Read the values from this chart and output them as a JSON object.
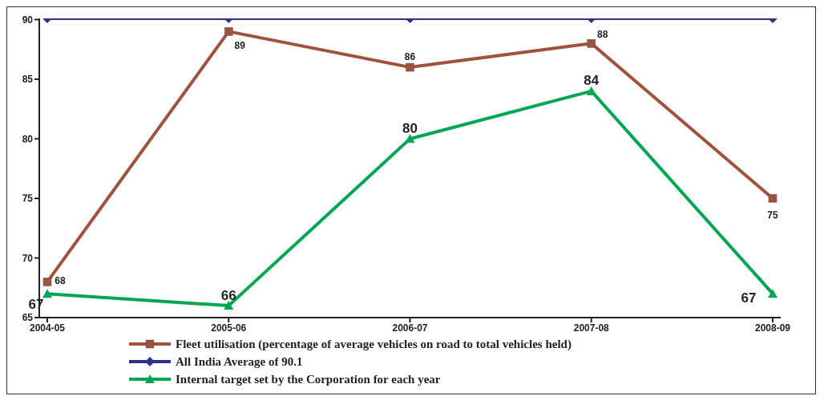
{
  "chart_data": {
    "type": "line",
    "categories": [
      "2004-05",
      "2005-06",
      "2006-07",
      "2007-08",
      "2008-09"
    ],
    "series": [
      {
        "name": "Fleet utilisation (percentage of average vehicles on road to total vehicles held)",
        "color": "#a0523d",
        "values": [
          68,
          89,
          86,
          88,
          75
        ],
        "marker": "square",
        "value_labels": [
          "68",
          "89",
          "86",
          "88",
          "75"
        ]
      },
      {
        "name": "All India Average of 90.1",
        "color": "#2e3192",
        "values": [
          90.1,
          90.1,
          90.1,
          90.1,
          90.1
        ],
        "marker": "diamond"
      },
      {
        "name": "Internal target set by the Corporation for each year",
        "color": "#00a650",
        "values": [
          67,
          66,
          80,
          84,
          67
        ],
        "marker": "triangle",
        "value_labels": [
          "67",
          "66",
          "80",
          "84",
          "67"
        ]
      }
    ],
    "ylim": [
      65,
      90.1
    ],
    "yticks": [
      65,
      70,
      75,
      80,
      85,
      90
    ],
    "grid": false,
    "legend": "bottom",
    "line_style": "solid"
  }
}
